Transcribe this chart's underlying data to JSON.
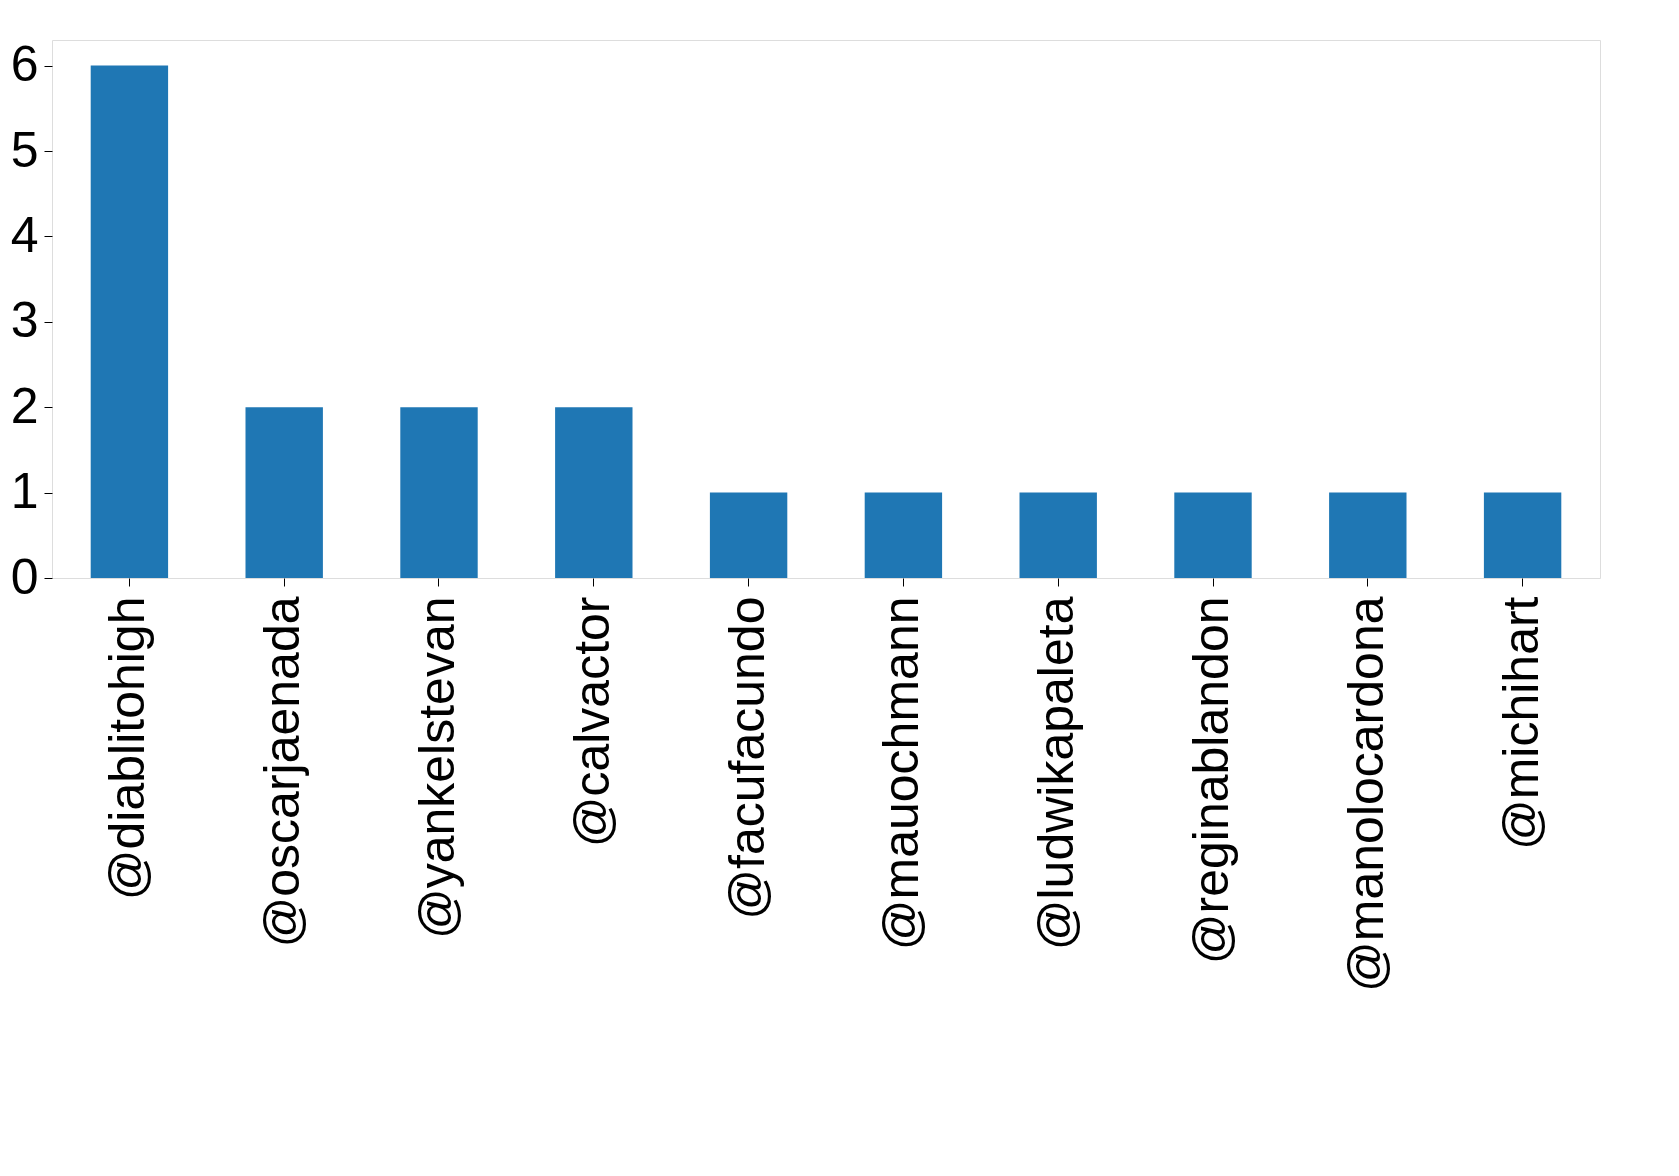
{
  "chart_data": {
    "type": "bar",
    "categories": [
      "@diablitohigh",
      "@oscarjaenada",
      "@yankelstevan",
      "@calvactor",
      "@facufacundo",
      "@mauochmann",
      "@ludwikapaleta",
      "@reginablandon",
      "@manolocardona",
      "@michihart"
    ],
    "values": [
      6,
      2,
      2,
      2,
      1,
      1,
      1,
      1,
      1,
      1
    ],
    "color": "#1f77b4",
    "ylim": [
      0,
      6.3
    ],
    "yticks": [
      0,
      1,
      2,
      3,
      4,
      5,
      6
    ],
    "grid": false
  }
}
